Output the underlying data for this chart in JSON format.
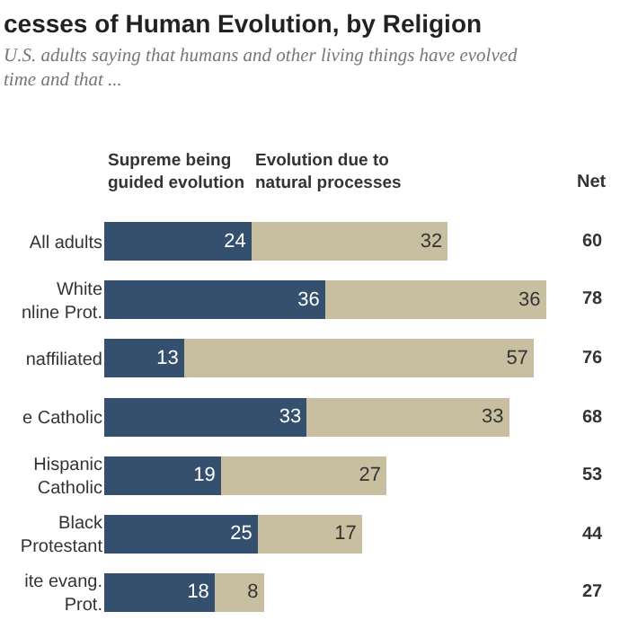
{
  "chart_data": {
    "type": "bar",
    "orientation": "horizontal",
    "stacked": true,
    "data_labels": true,
    "legend": false,
    "grid": false,
    "title": "cesses of Human Evolution, by Religion",
    "subtitle": "U.S. adults saying that humans and other living things have evolved\ntime and that ...",
    "categories": [
      "All adults",
      "White\nnline Prot.",
      "naffiliated",
      "e Catholic",
      "Hispanic\nCatholic",
      "Black\nProtestant",
      "ite evang.\nProt."
    ],
    "series": [
      {
        "name": "Supreme being\nguided evolution",
        "color": "#34506e",
        "values": [
          24,
          36,
          13,
          33,
          19,
          25,
          18
        ]
      },
      {
        "name": "Evolution due to\nnatural processes",
        "color": "#c8bea0",
        "values": [
          32,
          36,
          57,
          33,
          27,
          17,
          8
        ]
      }
    ],
    "annotations": [
      "Net",
      "60",
      "78",
      "76",
      "68",
      "53",
      "44",
      "27"
    ]
  }
}
